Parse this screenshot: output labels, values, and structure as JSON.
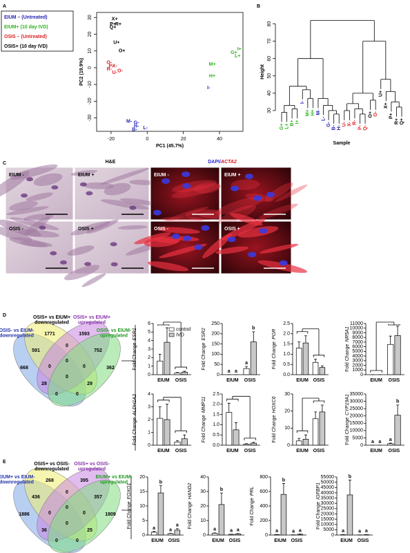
{
  "panels": {
    "a": "A",
    "b": "B",
    "c": "C",
    "d": "D",
    "e": "E"
  },
  "pca": {
    "type": "scatter",
    "xlabel": "PC1 (45.7%)",
    "ylabel": "PC2 (19.9%)",
    "xlim": [
      -28,
      53
    ],
    "ylim": [
      -38,
      33
    ],
    "xticks": [
      -20,
      0,
      20,
      40
    ],
    "yticks": [
      -30,
      -20,
      -10,
      0,
      10,
      20,
      30
    ],
    "legend": [
      {
        "label": "EIUM – (Untreated)",
        "color": "#2424b8"
      },
      {
        "label": "EIUM+ (10 day IVD)",
        "color": "#2fb51f"
      },
      {
        "label": "OSIS – (Untreated)",
        "color": "#dd2222"
      },
      {
        "label": "OSIS+ (10 day IVD)",
        "color": "#000000"
      }
    ],
    "points": [
      {
        "label": "X+",
        "x": -18,
        "y": 29,
        "color": "#000000"
      },
      {
        "label": "P+",
        "x": -19,
        "y": 26,
        "color": "#000000"
      },
      {
        "label": "R+",
        "x": -16,
        "y": 26,
        "color": "#000000"
      },
      {
        "label": "Q+",
        "x": -19,
        "y": 24,
        "color": "#000000"
      },
      {
        "label": "U+",
        "x": -17,
        "y": 15,
        "color": "#000000"
      },
      {
        "label": "O+",
        "x": -14,
        "y": 10,
        "color": "#000000"
      },
      {
        "label": "O-",
        "x": -21,
        "y": 3,
        "color": "#dd2222"
      },
      {
        "label": "P-",
        "x": -20,
        "y": 1,
        "color": "#dd2222"
      },
      {
        "label": "X-",
        "x": -18,
        "y": 1,
        "color": "#dd2222"
      },
      {
        "label": "R-",
        "x": -21,
        "y": -1,
        "color": "#dd2222"
      },
      {
        "label": "U-",
        "x": -18,
        "y": -3,
        "color": "#dd2222"
      },
      {
        "label": "O-",
        "x": -15,
        "y": -2,
        "color": "#dd2222"
      },
      {
        "label": "G+",
        "x": 48,
        "y": 9,
        "color": "#2fb51f"
      },
      {
        "label": "I+",
        "x": 51,
        "y": 11,
        "color": "#2fb51f"
      },
      {
        "label": "L+",
        "x": 50,
        "y": 7,
        "color": "#2fb51f"
      },
      {
        "label": "M+",
        "x": 36,
        "y": 2,
        "color": "#2fb51f"
      },
      {
        "label": "H+",
        "x": 36,
        "y": -5,
        "color": "#2fb51f"
      },
      {
        "label": "I-",
        "x": 34,
        "y": -12,
        "color": "#2424b8"
      },
      {
        "label": "M-",
        "x": -10,
        "y": -32,
        "color": "#2424b8"
      },
      {
        "label": "G-",
        "x": -6,
        "y": -33,
        "color": "#2424b8"
      },
      {
        "label": "H-",
        "x": -6,
        "y": -35,
        "color": "#2424b8"
      },
      {
        "label": "B-",
        "x": -7,
        "y": -37,
        "color": "#2424b8"
      },
      {
        "label": "L-",
        "x": -1,
        "y": -36,
        "color": "#2424b8"
      }
    ]
  },
  "dendrogram": {
    "ylabel": "Height",
    "xlabel": "Sample",
    "ylim": [
      20,
      85
    ],
    "yticks": [
      30,
      40,
      50,
      60,
      70,
      80
    ],
    "tree": {
      "height": 82,
      "children": [
        {
          "height": 60,
          "children": [
            {
              "height": 44,
              "children": [
                {
                  "height": 33,
                  "children": [
                    {
                      "height": 29,
                      "children": [
                        {
                          "label": "G+",
                          "color": "#2fb51f"
                        },
                        {
                          "label": "L+",
                          "color": "#2fb51f"
                        }
                      ]
                    },
                    {
                      "height": 31,
                      "children": [
                        {
                          "label": "B+",
                          "color": "#2fb51f"
                        },
                        {
                          "label": "I+",
                          "color": "#2fb51f"
                        }
                      ]
                    }
                  ]
                },
                {
                  "height": 42,
                  "children": [
                    {
                      "label": "I-",
                      "color": "#2424b8"
                    },
                    {
                      "height": 37,
                      "children": [
                        {
                          "label": "M+",
                          "color": "#2fb51f"
                        },
                        {
                          "label": "H+",
                          "color": "#2fb51f"
                        }
                      ]
                    }
                  ]
                }
              ]
            },
            {
              "height": 37,
              "children": [
                {
                  "label": "M-",
                  "color": "#2424b8"
                },
                {
                  "height": 33,
                  "children": [
                    {
                      "label": "L-",
                      "color": "#2424b8"
                    },
                    {
                      "height": 30,
                      "children": [
                        {
                          "label": "G-",
                          "color": "#2424b8"
                        },
                        {
                          "height": 28,
                          "children": [
                            {
                              "label": "B-",
                              "color": "#2424b8"
                            },
                            {
                              "label": "H-",
                              "color": "#2424b8"
                            }
                          ]
                        }
                      ]
                    }
                  ]
                }
              ]
            }
          ]
        },
        {
          "height": 70,
          "children": [
            {
              "height": 40,
              "children": [
                {
                  "height": 34,
                  "children": [
                    {
                      "height": 30,
                      "children": [
                        {
                          "label": "U-",
                          "color": "#dd2222"
                        },
                        {
                          "label": "X-",
                          "color": "#dd2222"
                        }
                      ]
                    },
                    {
                      "height": 31,
                      "children": [
                        {
                          "label": "R-",
                          "color": "#dd2222"
                        },
                        {
                          "height": 28,
                          "children": [
                            {
                              "label": "P-",
                              "color": "#dd2222"
                            },
                            {
                              "label": "Q-",
                              "color": "#dd2222"
                            }
                          ]
                        }
                      ]
                    }
                  ]
                },
                {
                  "height": 36,
                  "children": [
                    {
                      "label": "O+",
                      "color": "#000000"
                    },
                    {
                      "label": "O-",
                      "color": "#dd2222"
                    }
                  ]
                }
              ]
            },
            {
              "height": 48,
              "children": [
                {
                  "label": "U+",
                  "color": "#000000"
                },
                {
                  "height": 41,
                  "children": [
                    {
                      "label": "X+",
                      "color": "#000000"
                    },
                    {
                      "height": 35,
                      "children": [
                        {
                          "label": "P+",
                          "color": "#000000"
                        },
                        {
                          "height": 32,
                          "children": [
                            {
                              "label": "R+",
                              "color": "#000000"
                            },
                            {
                              "label": "Q+",
                              "color": "#000000"
                            }
                          ]
                        }
                      ]
                    }
                  ]
                }
              ]
            }
          ]
        }
      ]
    }
  },
  "micrographs": {
    "he_title": "H&E",
    "fluor_title": "DAPI/",
    "fluor_marker": "ACTA2",
    "he_labels": [
      "EIUM -",
      "EIUM +",
      "OSIS -",
      "OSIS +"
    ],
    "fluor_labels": [
      "EIUM -",
      "EIUM +",
      "OSIS -",
      "OSIS +"
    ]
  },
  "venn_d": {
    "sets": [
      [
        "OSIS- vs EIUM-",
        "downregulated"
      ],
      [
        "OSIS+ vs EIUM+",
        "downregulated"
      ],
      [
        "OSIS+ vs EIUM+",
        "upregulated"
      ],
      [
        "OSIS- vs EIUM-",
        "upregulated"
      ]
    ],
    "regions": [
      668,
      1771,
      1593,
      362,
      591,
      0,
      752,
      0,
      0,
      0,
      28,
      0,
      29,
      0,
      0
    ]
  },
  "venn_e": {
    "sets": [
      [
        "EIUM+ vs EIUM-",
        "downregulated"
      ],
      [
        "OSIS+ vs OSIS-",
        "downregulated"
      ],
      [
        "OSIS+ vs OSIS-",
        "upregulated"
      ],
      [
        "EIUM+ vs EIUM-",
        "upregulated"
      ]
    ],
    "regions": [
      1886,
      268,
      395,
      1809,
      436,
      0,
      357,
      0,
      0,
      0,
      36,
      0,
      25,
      0,
      0
    ]
  },
  "bars_d": {
    "ylabel": "Fold Change",
    "legend": [
      {
        "name": "control",
        "color": "#ffffff"
      },
      {
        "name": "IVD",
        "color": "#c8c8c8"
      }
    ],
    "charts": [
      {
        "type": "bar",
        "gene": "ESR1",
        "categories": [
          "EIUM",
          "OSIS"
        ],
        "ylim": [
          0,
          6
        ],
        "yticks": [
          0,
          1,
          2,
          3,
          4,
          5,
          6
        ],
        "control": [
          1.6,
          0.2
        ],
        "control_err": [
          0.8,
          0.05
        ],
        "ivd": [
          3.8,
          0.3
        ],
        "ivd_err": [
          1.7,
          0.1
        ]
      },
      {
        "type": "bar",
        "gene": "ESR2",
        "categories": [
          "EIUM",
          "OSIS"
        ],
        "ylim": [
          0,
          250
        ],
        "yticks": [
          0,
          50,
          100,
          150,
          200,
          250
        ],
        "control": [
          0,
          30
        ],
        "control_err": [
          0,
          10
        ],
        "ivd": [
          0,
          160
        ],
        "ivd_err": [
          0,
          50
        ],
        "control_letters": [
          "a",
          "a"
        ],
        "ivd_letters": [
          "a",
          "b"
        ]
      },
      {
        "type": "bar",
        "gene": "PGR",
        "categories": [
          "EIUM",
          "OSIS"
        ],
        "ylim": [
          0,
          2.5
        ],
        "yticks": [
          {
            "value": 0,
            "label": "0.0"
          },
          0.5,
          {
            "value": 1,
            "label": "1.0"
          },
          1.5,
          {
            "value": 2,
            "label": "2.0"
          },
          2.5
        ],
        "control": [
          1.3,
          0.6
        ],
        "control_err": [
          0.3,
          0.15
        ],
        "ivd": [
          1.55,
          0.35
        ],
        "ivd_err": [
          0.35,
          0.08
        ]
      },
      {
        "type": "bar",
        "gene": "NR5A1",
        "categories": [
          "EIUM",
          "OSIS"
        ],
        "ylim": [
          0,
          11000
        ],
        "yticks": [
          0,
          1000,
          2000,
          3000,
          4000,
          5000,
          6000,
          7000,
          8000,
          9000,
          10000,
          11000
        ],
        "control": [
          0,
          6500
        ],
        "control_err": [
          0,
          1800
        ],
        "ivd": [
          0,
          8400
        ],
        "ivd_err": [
          0,
          2000
        ]
      },
      {
        "type": "bar",
        "gene": "ALDH1A2",
        "categories": [
          "EIUM",
          "OSIS"
        ],
        "ylim": [
          0,
          4
        ],
        "yticks": [
          0,
          1,
          2,
          3,
          4
        ],
        "control": [
          2.1,
          0.25
        ],
        "control_err": [
          0.9,
          0.1
        ],
        "ivd": [
          2.0,
          0.5
        ],
        "ivd_err": [
          1.2,
          0.3
        ]
      },
      {
        "type": "bar",
        "gene": "MMP11",
        "categories": [
          "EIUM",
          "OSIS"
        ],
        "ylim": [
          0,
          2.5
        ],
        "yticks": [
          {
            "value": 0,
            "label": "0.0"
          },
          0.5,
          {
            "value": 1,
            "label": "1.0"
          },
          1.5,
          {
            "value": 2,
            "label": "2.0"
          },
          2.5
        ],
        "control": [
          1.6,
          0.05
        ],
        "control_err": [
          0.45,
          0.02
        ],
        "ivd": [
          0.75,
          0.1
        ],
        "ivd_err": [
          0.35,
          0.04
        ]
      },
      {
        "type": "bar",
        "gene": "HOXC6",
        "categories": [
          "EIUM",
          "OSIS"
        ],
        "ylim": [
          0,
          30
        ],
        "yticks": [
          0,
          10,
          20,
          30
        ],
        "control": [
          2.5,
          15.5
        ],
        "control_err": [
          1.5,
          4
        ],
        "ivd": [
          3.5,
          19.5
        ],
        "ivd_err": [
          2.5,
          4
        ]
      },
      {
        "type": "bar",
        "gene": "CYP19A1",
        "categories": [
          "EIUM",
          "OSIS"
        ],
        "ylim": [
          0,
          35000
        ],
        "yticks": [
          0,
          5000,
          10000,
          15000,
          20000,
          25000,
          30000,
          35000
        ],
        "control": [
          0,
          1000
        ],
        "control_err": [
          0,
          400
        ],
        "ivd": [
          0,
          20500
        ],
        "ivd_err": [
          0,
          7000
        ],
        "control_letters": [
          "a",
          "a"
        ],
        "ivd_letters": [
          "a",
          "b"
        ]
      }
    ]
  },
  "bars_e": {
    "ylabel": "Fold Change",
    "charts": [
      {
        "type": "bar",
        "gene": "FOXO1",
        "categories": [
          "EIUM",
          "OSIS"
        ],
        "ylim": [
          0,
          20
        ],
        "yticks": [
          0,
          5,
          10,
          15,
          20
        ],
        "control": [
          1.0,
          0.5
        ],
        "control_err": [
          0.2,
          0.1
        ],
        "ivd": [
          14.5,
          1.7
        ],
        "ivd_err": [
          2.5,
          0.5
        ],
        "control_letters": [
          "a",
          "a"
        ],
        "ivd_letters": [
          "b",
          "a"
        ]
      },
      {
        "type": "bar",
        "gene": "HAND2",
        "categories": [
          "EIUM",
          "OSIS"
        ],
        "ylim": [
          0,
          40
        ],
        "yticks": [
          0,
          10,
          20,
          30,
          40
        ],
        "control": [
          1.2,
          0.5
        ],
        "control_err": [
          0.3,
          0.1
        ],
        "ivd": [
          21,
          0.8
        ],
        "ivd_err": [
          8,
          0.2
        ],
        "control_letters": [
          "a",
          "a"
        ],
        "ivd_letters": [
          "b",
          "a"
        ]
      },
      {
        "type": "bar",
        "gene": "PRL",
        "categories": [
          "EIUM",
          "OSIS"
        ],
        "ylim": [
          0,
          800
        ],
        "yticks": [
          0,
          200,
          400,
          600,
          800
        ],
        "control": [
          5,
          2
        ],
        "control_err": [
          2,
          1
        ],
        "ivd": [
          560,
          10
        ],
        "ivd_err": [
          150,
          4
        ],
        "control_letters": [
          "a",
          "a"
        ],
        "ivd_letters": [
          "b",
          "a"
        ]
      },
      {
        "type": "bar",
        "gene": "IGFBP1",
        "categories": [
          "EIUM",
          "OSIS"
        ],
        "ylim": [
          0,
          55000
        ],
        "yticks": [
          0,
          5000,
          10000,
          15000,
          20000,
          25000,
          30000,
          35000,
          40000,
          45000,
          50000,
          55000
        ],
        "control": [
          300,
          100
        ],
        "control_err": [
          100,
          50
        ],
        "ivd": [
          38000,
          300
        ],
        "ivd_err": [
          14000,
          100
        ],
        "control_letters": [
          "a",
          "a"
        ],
        "ivd_letters": [
          "b",
          "a"
        ]
      }
    ]
  }
}
